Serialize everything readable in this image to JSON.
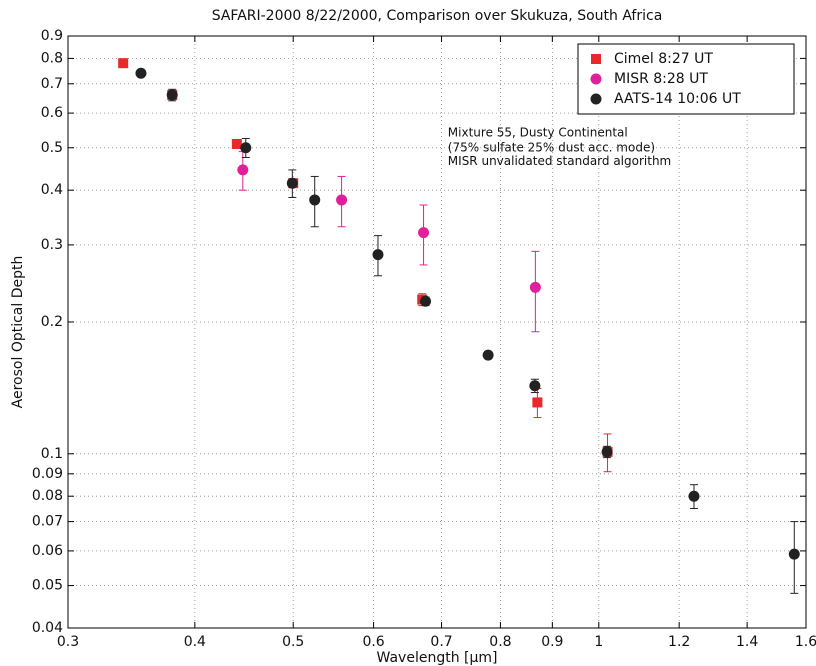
{
  "chart_data": {
    "type": "scatter",
    "title": "SAFARI-2000 8/22/2000, Comparison over Skukuza, South Africa",
    "xlabel": "Wavelength [µm]",
    "ylabel": "Aerosol Optical Depth",
    "xscale": "log",
    "yscale": "log",
    "grid": true,
    "legend": "upper right",
    "xlim": [
      0.3,
      1.6
    ],
    "ylim": [
      0.04,
      0.9
    ],
    "xticks": [
      0.3,
      0.4,
      0.5,
      0.6,
      0.7,
      0.8,
      0.9,
      1,
      1.2,
      1.4,
      1.6
    ],
    "yticks": [
      0.04,
      0.05,
      0.06,
      0.07,
      0.08,
      0.09,
      0.1,
      0.2,
      0.3,
      0.4,
      0.5,
      0.6,
      0.7,
      0.8,
      0.9
    ],
    "series": [
      {
        "name": "Cimel 8:27 UT",
        "color": "#e8282b",
        "marker": "square",
        "x": [
          0.34,
          0.38,
          0.44,
          0.5,
          0.67,
          0.87,
          1.02
        ],
        "values": [
          0.78,
          0.66,
          0.51,
          0.415,
          0.225,
          0.131,
          0.101
        ],
        "errors": [
          0.008,
          0.007,
          0.006,
          0.006,
          0.007,
          0.01,
          0.01
        ]
      },
      {
        "name": "MISR 8:28 UT",
        "color": "#e0209a",
        "marker": "circle",
        "x": [
          0.446,
          0.558,
          0.672,
          0.866
        ],
        "values": [
          0.445,
          0.38,
          0.32,
          0.24
        ],
        "errors": [
          0.045,
          0.05,
          0.05,
          0.05
        ]
      },
      {
        "name": "AATS-14 10:06 UT",
        "color": "#222222",
        "marker": "circle",
        "x": [
          0.354,
          0.38,
          0.449,
          0.499,
          0.525,
          0.606,
          0.675,
          0.778,
          0.865,
          1.019,
          1.241,
          1.558
        ],
        "values": [
          0.74,
          0.66,
          0.5,
          0.415,
          0.38,
          0.285,
          0.223,
          0.168,
          0.143,
          0.101,
          0.08,
          0.059
        ],
        "errors": [
          0.01,
          0.02,
          0.025,
          0.03,
          0.05,
          0.03,
          0.005,
          0.003,
          0.005,
          0.003,
          0.005,
          0.011
        ]
      }
    ],
    "annotations": [
      {
        "text": "Mixture 55, Dusty Continental",
        "x": 0.71,
        "y": 0.54,
        "color": "#e0209a"
      },
      {
        "text": "(75% sulfate 25% dust acc. mode)",
        "x": 0.71,
        "y": 0.5,
        "color": "#e0209a"
      },
      {
        "text": "MISR unvalidated standard algorithm",
        "x": 0.71,
        "y": 0.465,
        "color": "#e0209a"
      }
    ]
  }
}
